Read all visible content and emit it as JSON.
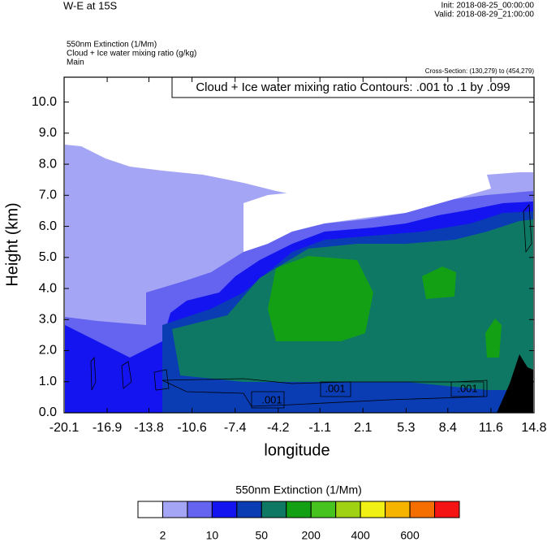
{
  "chart_data": {
    "type": "contour",
    "title": "W-E at 15S",
    "init": "Init: 2018-08-25_00:00:00",
    "valid": "Valid: 2018-08-29_21:00:00",
    "field_labels": [
      "550nm Extinction   (1/Mm)",
      "Cloud + Ice water mixing ratio   (g/kg)",
      "Main"
    ],
    "cross_section": "Cross-Section: (130,279) to (454,279)",
    "contour_info": "Cloud + Ice water mixing ratio Contours: .001 to .1 by .099",
    "contour_labels": [
      ".001",
      ".001",
      ".001"
    ],
    "xlabel": "longitude",
    "ylabel": "Height (km)",
    "xlim": [
      -20.1,
      14.8
    ],
    "xticks": [
      -20.1,
      -16.9,
      -13.8,
      -10.6,
      -7.4,
      -4.2,
      -1.1,
      2.1,
      5.3,
      8.4,
      11.6,
      14.8
    ],
    "ylim": [
      0,
      10.8
    ],
    "yticks": [
      {
        "value": 0,
        "label": "0.0"
      },
      {
        "value": 1,
        "label": "1.0"
      },
      {
        "value": 2,
        "label": "2.0"
      },
      {
        "value": 3,
        "label": "3.0"
      },
      {
        "value": 4,
        "label": "4.0"
      },
      {
        "value": 5,
        "label": "5.0"
      },
      {
        "value": 6,
        "label": "6.0"
      },
      {
        "value": 7,
        "label": "7.0"
      },
      {
        "value": 8,
        "label": "8.0"
      },
      {
        "value": 9,
        "label": "9.0"
      },
      {
        "value": 10,
        "label": "10.0"
      }
    ],
    "colorbar": {
      "title": "550nm Extinction  (1/Mm)",
      "colors": [
        "#ffffff",
        "#a5a5f5",
        "#6464f0",
        "#1414f0",
        "#0a3cb4",
        "#0f7864",
        "#14a014",
        "#46c31e",
        "#a0d214",
        "#f0f014",
        "#f5b400",
        "#f56e00",
        "#f51414"
      ],
      "levels": [
        2,
        null,
        10,
        null,
        50,
        null,
        200,
        null,
        400,
        null,
        600,
        null
      ]
    }
  }
}
